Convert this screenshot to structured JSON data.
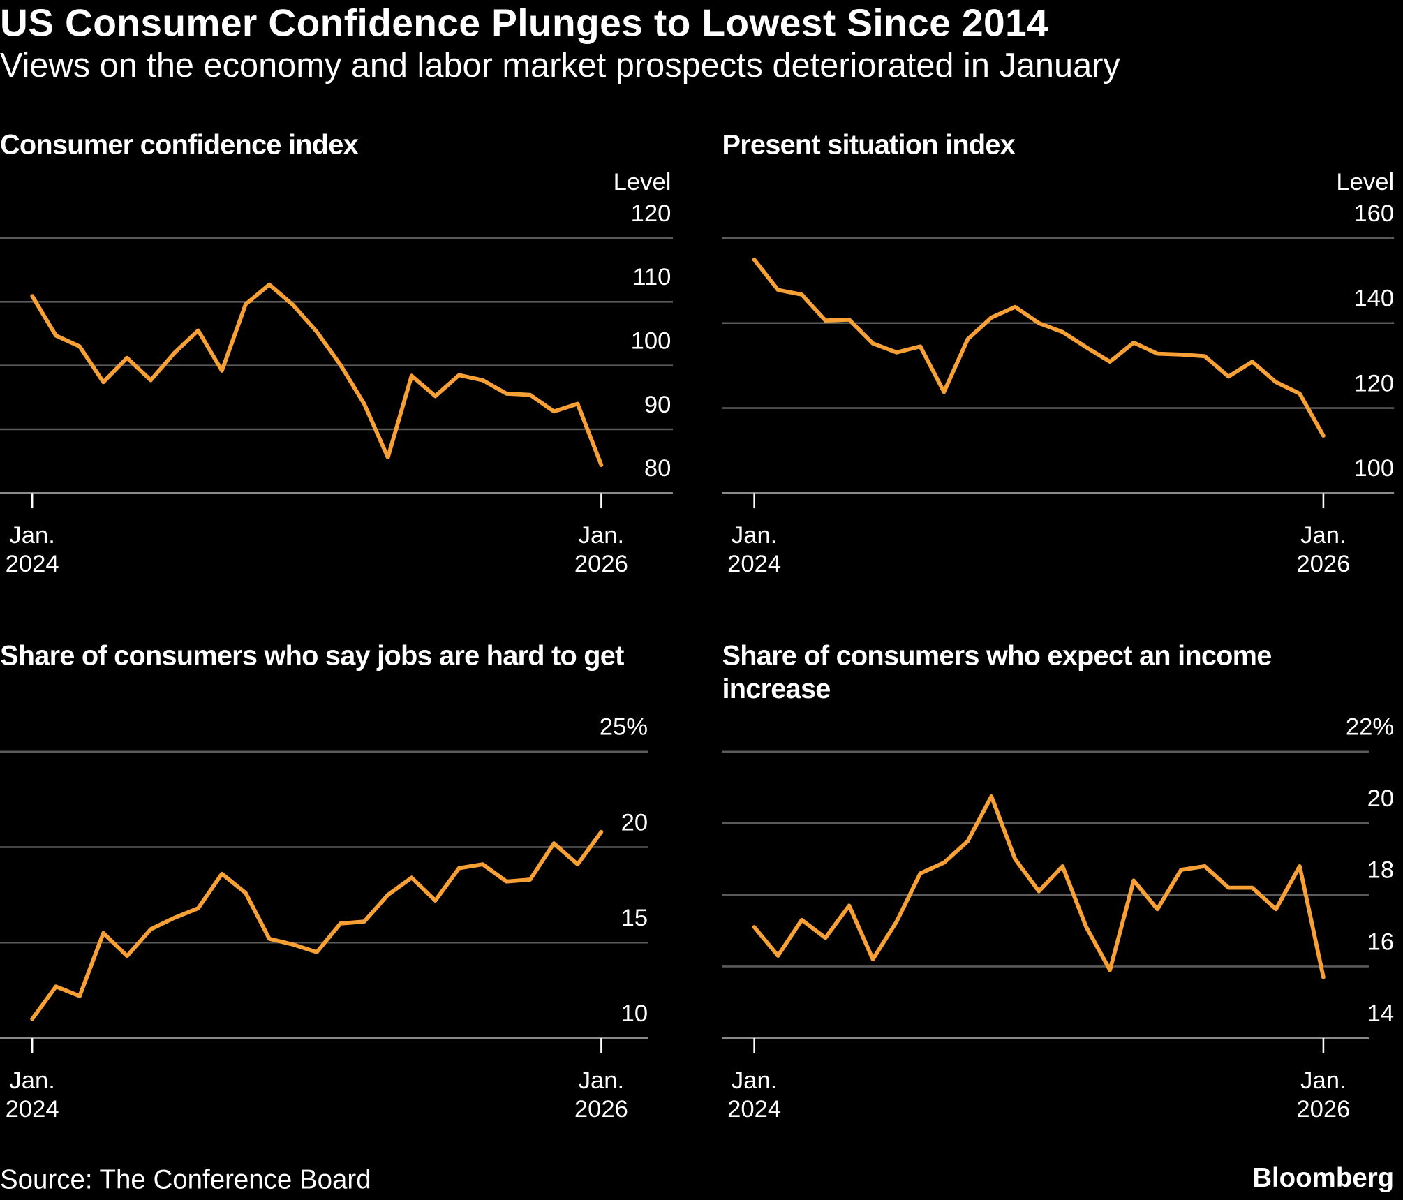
{
  "title": "US Consumer Confidence Plunges to Lowest Since 2014",
  "subtitle": "Views on the economy and labor market prospects deteriorated in January",
  "source": "Source: The Conference Board",
  "brand": "Bloomberg",
  "chart_data": [
    {
      "type": "line",
      "title": "Consumer confidence index",
      "unit_label": "Level",
      "color": "#f7a035",
      "grid": true,
      "categories": [
        "Jan. 2024",
        null,
        null,
        null,
        null,
        null,
        null,
        null,
        null,
        null,
        null,
        null,
        null,
        null,
        null,
        null,
        null,
        null,
        null,
        null,
        null,
        null,
        null,
        null,
        "Jan. 2026"
      ],
      "values": [
        110.9,
        104.7,
        103.0,
        97.4,
        101.2,
        97.7,
        102.0,
        105.5,
        99.2,
        109.6,
        112.7,
        109.5,
        105.3,
        100.1,
        94.0,
        85.6,
        98.4,
        95.2,
        98.5,
        97.7,
        95.6,
        95.4,
        92.8,
        94.0,
        84.4
      ],
      "ylim": [
        80,
        120
      ],
      "yticks": [
        80,
        90,
        100,
        110,
        120
      ]
    },
    {
      "type": "line",
      "title": "Present situation index",
      "unit_label": "Level",
      "color": "#f7a035",
      "grid": true,
      "categories": [
        "Jan. 2024",
        null,
        null,
        null,
        null,
        null,
        null,
        null,
        null,
        null,
        null,
        null,
        null,
        null,
        null,
        null,
        null,
        null,
        null,
        null,
        null,
        null,
        null,
        null,
        "Jan. 2026"
      ],
      "values": [
        154.9,
        147.8,
        146.7,
        140.6,
        140.8,
        135.2,
        133.1,
        134.5,
        123.8,
        136.2,
        141.3,
        143.8,
        140.0,
        137.9,
        134.3,
        130.9,
        135.4,
        132.8,
        132.6,
        132.2,
        127.4,
        130.9,
        126.1,
        123.4,
        113.5
      ],
      "ylim": [
        100,
        160
      ],
      "yticks": [
        100,
        120,
        140,
        160
      ]
    },
    {
      "type": "line",
      "title": "Share of consumers who say jobs are hard to get",
      "color": "#f7a035",
      "grid": true,
      "categories": [
        "Jan. 2024",
        null,
        null,
        null,
        null,
        null,
        null,
        null,
        null,
        null,
        null,
        null,
        null,
        null,
        null,
        null,
        null,
        null,
        null,
        null,
        null,
        null,
        null,
        null,
        "Jan. 2026"
      ],
      "values": [
        11.0,
        12.7,
        12.2,
        15.5,
        14.3,
        15.7,
        16.3,
        16.8,
        18.6,
        17.6,
        15.2,
        14.9,
        14.5,
        16.0,
        16.1,
        17.5,
        18.4,
        17.2,
        18.9,
        19.1,
        18.2,
        18.3,
        20.2,
        19.1,
        20.8
      ],
      "ylim": [
        10,
        25
      ],
      "yticks": [
        10,
        15,
        20,
        {
          "value": 25,
          "label": "25%"
        }
      ]
    },
    {
      "type": "line",
      "title": "Share of consumers who expect an income increase",
      "color": "#f7a035",
      "grid": true,
      "categories": [
        "Jan. 2024",
        null,
        null,
        null,
        null,
        null,
        null,
        null,
        null,
        null,
        null,
        null,
        null,
        null,
        null,
        null,
        null,
        null,
        null,
        null,
        null,
        null,
        null,
        null,
        "Jan. 2026"
      ],
      "values": [
        17.1,
        16.3,
        17.3,
        16.8,
        17.7,
        16.2,
        17.25,
        18.6,
        18.9,
        19.5,
        20.75,
        19.0,
        18.1,
        18.8,
        17.1,
        15.9,
        18.4,
        17.6,
        18.7,
        18.8,
        18.2,
        18.2,
        17.6,
        18.8,
        15.7
      ],
      "ylim": [
        14,
        22
      ],
      "yticks": [
        14,
        16,
        18,
        20,
        {
          "value": 22,
          "label": "22%"
        }
      ]
    }
  ]
}
